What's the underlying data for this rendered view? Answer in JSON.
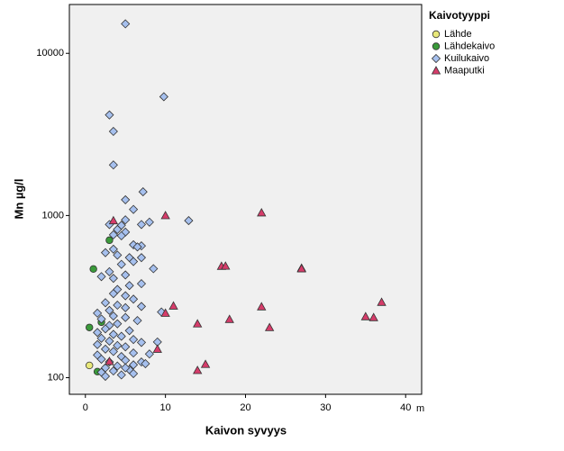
{
  "chart_data": {
    "type": "scatter",
    "x_label": "Kaivon syvyys",
    "y_label": "Mn µg/l",
    "x_unit": "m",
    "legend_title": "Kaivotyyppi",
    "xlim": [
      -2,
      42
    ],
    "xticks": [
      0,
      10,
      20,
      30,
      40
    ],
    "ylim": [
      79,
      20000
    ],
    "yticks": [
      100,
      1000,
      10000
    ],
    "log_y": true,
    "legend": "right",
    "series": [
      {
        "name": "Lähde",
        "color": "#e8e87a",
        "marker": "circle",
        "x": [
          0.5
        ],
        "y": [
          119
        ]
      },
      {
        "name": "Lähdekaivo",
        "color": "#3a9a3a",
        "marker": "circle",
        "x": [
          1.0,
          0.5,
          3.0,
          1.5,
          2.0
        ],
        "y": [
          468,
          204,
          704,
          109,
          220
        ]
      },
      {
        "name": "Kuilukaivo",
        "color": "#a6c0ee",
        "marker": "diamond",
        "x": [
          5,
          9.8,
          3,
          3.5,
          3.5,
          7.2,
          5,
          6,
          12.9,
          8,
          5,
          7,
          4.5,
          3,
          4,
          5,
          3.5,
          4.5,
          6,
          7,
          6.5,
          3.5,
          2.5,
          4,
          5.5,
          7,
          6,
          4.5,
          8.5,
          3,
          5,
          2,
          3.5,
          7,
          5.5,
          4,
          3.5,
          5,
          6,
          2.5,
          4,
          7,
          5,
          3,
          1.5,
          9.5,
          3.5,
          5,
          2,
          6.5,
          4,
          3,
          2.5,
          5.5,
          1.5,
          3.5,
          4.5,
          2,
          6,
          3,
          7,
          9,
          1.5,
          4,
          5,
          2.5,
          3.5,
          6,
          8,
          1.5,
          4.5,
          2,
          5,
          3,
          7,
          6,
          4,
          2.5,
          5.5,
          3.5,
          2,
          6,
          4.5,
          2.5,
          7.5,
          5
        ],
        "y": [
          15200,
          5400,
          4170,
          3300,
          2050,
          1400,
          1250,
          1090,
          930,
          910,
          940,
          880,
          870,
          880,
          820,
          790,
          760,
          750,
          660,
          650,
          640,
          620,
          590,
          570,
          550,
          550,
          520,
          500,
          470,
          450,
          430,
          420,
          410,
          380,
          370,
          350,
          330,
          320,
          305,
          290,
          280,
          275,
          270,
          260,
          250,
          254,
          240,
          235,
          230,
          225,
          215,
          210,
          200,
          195,
          190,
          185,
          180,
          175,
          172,
          168,
          165,
          166,
          160,
          158,
          155,
          150,
          145,
          142,
          140,
          138,
          135,
          130,
          128,
          125,
          125,
          120,
          118,
          115,
          112,
          110,
          108,
          106,
          104,
          102,
          122,
          115
        ]
      },
      {
        "name": "Maaputki",
        "color": "#d63c6a",
        "marker": "triangle",
        "x": [
          3.5,
          10,
          22,
          17,
          17.5,
          27,
          27,
          11,
          10,
          14,
          18,
          22,
          23,
          35,
          36,
          37,
          9,
          15,
          14,
          3
        ],
        "y": [
          930,
          1000,
          1040,
          487,
          488,
          474,
          470,
          277,
          250,
          215,
          229,
          274,
          204,
          238,
          235,
          292,
          150,
          121,
          111,
          126
        ]
      }
    ]
  }
}
